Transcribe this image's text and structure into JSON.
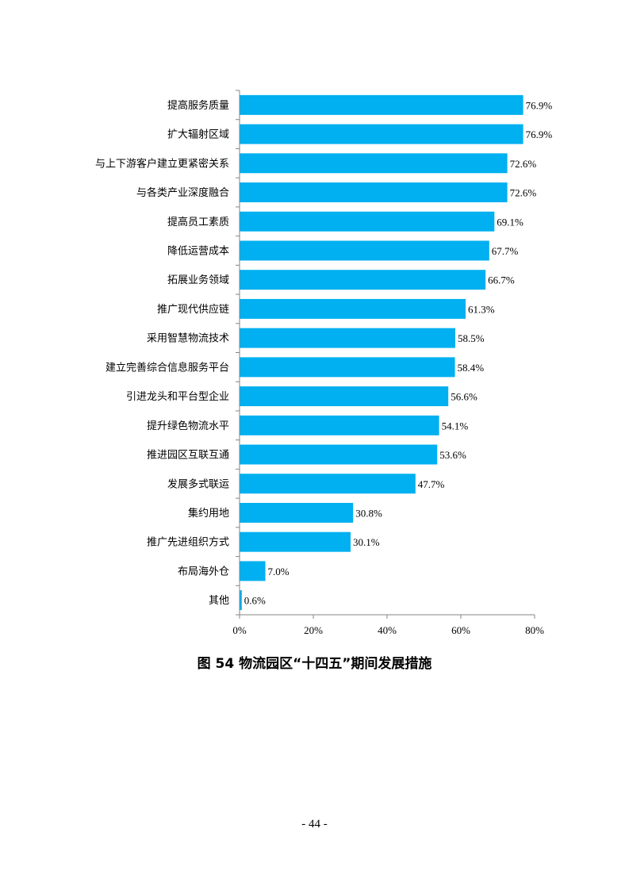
{
  "chart_data": {
    "type": "bar",
    "orientation": "horizontal",
    "categories": [
      "提高服务质量",
      "扩大辐射区域",
      "与上下游客户建立更紧密关系",
      "与各类产业深度融合",
      "提高员工素质",
      "降低运营成本",
      "拓展业务领域",
      "推广现代供应链",
      "采用智慧物流技术",
      "建立完善综合信息服务平台",
      "引进龙头和平台型企业",
      "提升绿色物流水平",
      "推进园区互联互通",
      "发展多式联运",
      "集约用地",
      "推广先进组织方式",
      "布局海外仓",
      "其他"
    ],
    "values": [
      76.9,
      76.9,
      72.6,
      72.6,
      69.1,
      67.7,
      66.7,
      61.3,
      58.5,
      58.4,
      56.6,
      54.1,
      53.6,
      47.7,
      30.8,
      30.1,
      7.0,
      0.6
    ],
    "value_labels": [
      "76.9%",
      "76.9%",
      "72.6%",
      "72.6%",
      "69.1%",
      "67.7%",
      "66.7%",
      "61.3%",
      "58.5%",
      "58.4%",
      "56.6%",
      "54.1%",
      "53.6%",
      "47.7%",
      "30.8%",
      "30.1%",
      "7.0%",
      "0.6%"
    ],
    "x_ticks": [
      0,
      20,
      40,
      60,
      80
    ],
    "x_tick_labels": [
      "0%",
      "20%",
      "40%",
      "60%",
      "80%"
    ],
    "xlim": [
      0,
      80
    ],
    "grid": false,
    "bar_color": "#00B0F0",
    "title": "",
    "xlabel": "",
    "ylabel": ""
  },
  "caption": "图 54  物流园区“十四五”期间发展措施",
  "page_number": "- 44 -"
}
